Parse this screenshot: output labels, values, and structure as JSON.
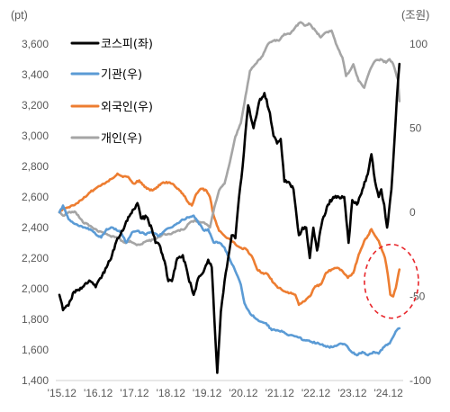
{
  "chart_data": {
    "type": "line",
    "y_left_unit": "(pt)",
    "y_right_unit": "(조원)",
    "y_left_ticks": [
      "3,600",
      "3,400",
      "3,200",
      "3,000",
      "2,800",
      "2,600",
      "2,400",
      "2,200",
      "2,000",
      "1,800",
      "1,600",
      "1,400"
    ],
    "y_left_range": [
      1400,
      3600
    ],
    "y_right_ticks": [
      "100",
      "50",
      "0",
      "-50",
      "-100"
    ],
    "y_right_range": [
      -100,
      100
    ],
    "x_ticks": [
      "'15.12",
      "'16.12",
      "'17.12",
      "'18.12",
      "'19.12",
      "'20.12",
      "'21.12",
      "'22.12",
      "'23.12",
      "'24.12"
    ],
    "x_range": [
      2015.85,
      2025.25
    ],
    "legend": {
      "placement": "top-left",
      "labels": [
        "코스피(좌)",
        "기관(우)",
        "외국인(우)",
        "개인(우)"
      ]
    },
    "grid": false,
    "annotation": {
      "type": "dashed-ellipse",
      "color": "#e8262b",
      "around": "foreign net purchases, late 2024"
    },
    "series": [
      {
        "name": "코스피(좌)",
        "axis": "left",
        "color": "#000000",
        "points": [
          [
            2015.85,
            1960
          ],
          [
            2015.95,
            1860
          ],
          [
            2016.1,
            1890
          ],
          [
            2016.25,
            1980
          ],
          [
            2016.4,
            1990
          ],
          [
            2016.55,
            2030
          ],
          [
            2016.7,
            2050
          ],
          [
            2016.85,
            2010
          ],
          [
            2017.0,
            2070
          ],
          [
            2017.15,
            2140
          ],
          [
            2017.3,
            2220
          ],
          [
            2017.45,
            2330
          ],
          [
            2017.6,
            2380
          ],
          [
            2017.75,
            2470
          ],
          [
            2017.9,
            2520
          ],
          [
            2018.0,
            2560
          ],
          [
            2018.1,
            2460
          ],
          [
            2018.25,
            2470
          ],
          [
            2018.4,
            2390
          ],
          [
            2018.5,
            2300
          ],
          [
            2018.6,
            2290
          ],
          [
            2018.75,
            2180
          ],
          [
            2018.85,
            2050
          ],
          [
            2018.95,
            2050
          ],
          [
            2019.1,
            2200
          ],
          [
            2019.25,
            2220
          ],
          [
            2019.4,
            2080
          ],
          [
            2019.55,
            1960
          ],
          [
            2019.7,
            2080
          ],
          [
            2019.85,
            2130
          ],
          [
            2019.95,
            2190
          ],
          [
            2020.05,
            2140
          ],
          [
            2020.12,
            1800
          ],
          [
            2020.2,
            1450
          ],
          [
            2020.3,
            1850
          ],
          [
            2020.4,
            2050
          ],
          [
            2020.5,
            2200
          ],
          [
            2020.6,
            2350
          ],
          [
            2020.7,
            2330
          ],
          [
            2020.8,
            2600
          ],
          [
            2020.9,
            2800
          ],
          [
            2020.97,
            3000
          ],
          [
            2021.05,
            3200
          ],
          [
            2021.2,
            3050
          ],
          [
            2021.35,
            3220
          ],
          [
            2021.5,
            3280
          ],
          [
            2021.65,
            3150
          ],
          [
            2021.75,
            3000
          ],
          [
            2021.85,
            2950
          ],
          [
            2021.95,
            2980
          ],
          [
            2022.05,
            2700
          ],
          [
            2022.15,
            2700
          ],
          [
            2022.3,
            2650
          ],
          [
            2022.45,
            2350
          ],
          [
            2022.55,
            2400
          ],
          [
            2022.65,
            2400
          ],
          [
            2022.75,
            2200
          ],
          [
            2022.85,
            2400
          ],
          [
            2022.95,
            2250
          ],
          [
            2023.1,
            2450
          ],
          [
            2023.25,
            2550
          ],
          [
            2023.4,
            2600
          ],
          [
            2023.55,
            2600
          ],
          [
            2023.7,
            2600
          ],
          [
            2023.82,
            2300
          ],
          [
            2023.92,
            2580
          ],
          [
            2024.05,
            2550
          ],
          [
            2024.2,
            2650
          ],
          [
            2024.35,
            2750
          ],
          [
            2024.45,
            2880
          ],
          [
            2024.55,
            2700
          ],
          [
            2024.65,
            2600
          ],
          [
            2024.72,
            2650
          ],
          [
            2024.8,
            2550
          ],
          [
            2024.88,
            2400
          ],
          [
            2024.93,
            2500
          ],
          [
            2025.0,
            2650
          ],
          [
            2025.08,
            2950
          ],
          [
            2025.15,
            3250
          ],
          [
            2025.22,
            3470
          ]
        ]
      },
      {
        "name": "기관(우)",
        "axis": "right",
        "color": "#5b9bd5",
        "points": [
          [
            2015.85,
            0
          ],
          [
            2015.95,
            4
          ],
          [
            2016.1,
            -4
          ],
          [
            2016.3,
            -7
          ],
          [
            2016.5,
            -9
          ],
          [
            2016.7,
            -10
          ],
          [
            2016.85,
            -13
          ],
          [
            2017.0,
            -15
          ],
          [
            2017.15,
            -10
          ],
          [
            2017.3,
            -9
          ],
          [
            2017.5,
            -11
          ],
          [
            2017.7,
            -18
          ],
          [
            2017.85,
            -12
          ],
          [
            2018.0,
            -11
          ],
          [
            2018.2,
            -13
          ],
          [
            2018.4,
            -12
          ],
          [
            2018.6,
            -14
          ],
          [
            2018.8,
            -10
          ],
          [
            2019.0,
            -8
          ],
          [
            2019.2,
            -5
          ],
          [
            2019.4,
            -3
          ],
          [
            2019.55,
            -2
          ],
          [
            2019.7,
            -7
          ],
          [
            2019.85,
            -11
          ],
          [
            2019.95,
            -10
          ],
          [
            2020.1,
            -18
          ],
          [
            2020.25,
            -18
          ],
          [
            2020.4,
            -21
          ],
          [
            2020.55,
            -28
          ],
          [
            2020.7,
            -35
          ],
          [
            2020.85,
            -43
          ],
          [
            2020.95,
            -54
          ],
          [
            2021.1,
            -60
          ],
          [
            2021.25,
            -63
          ],
          [
            2021.4,
            -65
          ],
          [
            2021.55,
            -66
          ],
          [
            2021.7,
            -70
          ],
          [
            2021.85,
            -70
          ],
          [
            2022.0,
            -71
          ],
          [
            2022.2,
            -73
          ],
          [
            2022.4,
            -74
          ],
          [
            2022.6,
            -76
          ],
          [
            2022.8,
            -77
          ],
          [
            2023.0,
            -78
          ],
          [
            2023.2,
            -80
          ],
          [
            2023.4,
            -80
          ],
          [
            2023.6,
            -78
          ],
          [
            2023.75,
            -79
          ],
          [
            2023.9,
            -83
          ],
          [
            2024.05,
            -85
          ],
          [
            2024.2,
            -83
          ],
          [
            2024.35,
            -85
          ],
          [
            2024.5,
            -83
          ],
          [
            2024.65,
            -84
          ],
          [
            2024.8,
            -80
          ],
          [
            2024.95,
            -78
          ],
          [
            2025.05,
            -74
          ],
          [
            2025.15,
            -70
          ],
          [
            2025.22,
            -69
          ]
        ]
      },
      {
        "name": "외국인(우)",
        "axis": "right",
        "color": "#ed7d31",
        "points": [
          [
            2015.85,
            0
          ],
          [
            2015.95,
            2
          ],
          [
            2016.1,
            3
          ],
          [
            2016.3,
            5
          ],
          [
            2016.5,
            8
          ],
          [
            2016.7,
            12
          ],
          [
            2016.9,
            15
          ],
          [
            2017.0,
            16
          ],
          [
            2017.15,
            18
          ],
          [
            2017.3,
            20
          ],
          [
            2017.45,
            23
          ],
          [
            2017.6,
            21
          ],
          [
            2017.75,
            21
          ],
          [
            2017.9,
            17
          ],
          [
            2018.05,
            19
          ],
          [
            2018.2,
            15
          ],
          [
            2018.35,
            13
          ],
          [
            2018.5,
            14
          ],
          [
            2018.65,
            17
          ],
          [
            2018.8,
            18
          ],
          [
            2018.95,
            17
          ],
          [
            2019.1,
            14
          ],
          [
            2019.25,
            11
          ],
          [
            2019.4,
            6
          ],
          [
            2019.5,
            4
          ],
          [
            2019.6,
            10
          ],
          [
            2019.75,
            14
          ],
          [
            2019.9,
            13
          ],
          [
            2020.0,
            9
          ],
          [
            2020.1,
            -2
          ],
          [
            2020.25,
            -11
          ],
          [
            2020.4,
            -14
          ],
          [
            2020.55,
            -16
          ],
          [
            2020.7,
            -19
          ],
          [
            2020.85,
            -21
          ],
          [
            2021.0,
            -22
          ],
          [
            2021.15,
            -26
          ],
          [
            2021.3,
            -34
          ],
          [
            2021.45,
            -36
          ],
          [
            2021.6,
            -37
          ],
          [
            2021.75,
            -42
          ],
          [
            2021.9,
            -45
          ],
          [
            2022.05,
            -47
          ],
          [
            2022.2,
            -48
          ],
          [
            2022.35,
            -49
          ],
          [
            2022.45,
            -55
          ],
          [
            2022.6,
            -53
          ],
          [
            2022.75,
            -50
          ],
          [
            2022.9,
            -44
          ],
          [
            2023.05,
            -43
          ],
          [
            2023.2,
            -36
          ],
          [
            2023.35,
            -34
          ],
          [
            2023.5,
            -33
          ],
          [
            2023.65,
            -35
          ],
          [
            2023.8,
            -39
          ],
          [
            2023.95,
            -36
          ],
          [
            2024.1,
            -25
          ],
          [
            2024.25,
            -17
          ],
          [
            2024.35,
            -14
          ],
          [
            2024.45,
            -10
          ],
          [
            2024.55,
            -14
          ],
          [
            2024.65,
            -17
          ],
          [
            2024.75,
            -23
          ],
          [
            2024.82,
            -27
          ],
          [
            2024.9,
            -37
          ],
          [
            2024.97,
            -49
          ],
          [
            2025.05,
            -50
          ],
          [
            2025.12,
            -45
          ],
          [
            2025.18,
            -38
          ],
          [
            2025.22,
            -34
          ]
        ]
      },
      {
        "name": "개인(우)",
        "axis": "right",
        "color": "#a5a5a5",
        "points": [
          [
            2015.85,
            0
          ],
          [
            2015.95,
            -2
          ],
          [
            2016.1,
            0
          ],
          [
            2016.3,
            0
          ],
          [
            2016.5,
            -6
          ],
          [
            2016.7,
            -8
          ],
          [
            2016.9,
            -11
          ],
          [
            2017.05,
            -12
          ],
          [
            2017.25,
            -14
          ],
          [
            2017.45,
            -15
          ],
          [
            2017.65,
            -18
          ],
          [
            2017.8,
            -17
          ],
          [
            2017.95,
            -19
          ],
          [
            2018.1,
            -19
          ],
          [
            2018.3,
            -17
          ],
          [
            2018.5,
            -16
          ],
          [
            2018.7,
            -13
          ],
          [
            2018.9,
            -13
          ],
          [
            2019.1,
            -11
          ],
          [
            2019.3,
            -10
          ],
          [
            2019.45,
            -6
          ],
          [
            2019.6,
            -5
          ],
          [
            2019.75,
            -6
          ],
          [
            2019.9,
            -7
          ],
          [
            2020.0,
            -9
          ],
          [
            2020.12,
            3
          ],
          [
            2020.25,
            13
          ],
          [
            2020.4,
            17
          ],
          [
            2020.55,
            30
          ],
          [
            2020.7,
            45
          ],
          [
            2020.85,
            53
          ],
          [
            2020.95,
            65
          ],
          [
            2021.1,
            84
          ],
          [
            2021.25,
            88
          ],
          [
            2021.45,
            93
          ],
          [
            2021.6,
            100
          ],
          [
            2021.75,
            102
          ],
          [
            2021.9,
            102
          ],
          [
            2022.05,
            106
          ],
          [
            2022.2,
            106
          ],
          [
            2022.35,
            110
          ],
          [
            2022.5,
            113
          ],
          [
            2022.6,
            111
          ],
          [
            2022.75,
            112
          ],
          [
            2022.9,
            108
          ],
          [
            2023.05,
            104
          ],
          [
            2023.2,
            107
          ],
          [
            2023.35,
            108
          ],
          [
            2023.5,
            99
          ],
          [
            2023.65,
            92
          ],
          [
            2023.75,
            81
          ],
          [
            2023.85,
            84
          ],
          [
            2023.95,
            88
          ],
          [
            2024.1,
            78
          ],
          [
            2024.25,
            74
          ],
          [
            2024.4,
            84
          ],
          [
            2024.55,
            90
          ],
          [
            2024.7,
            91
          ],
          [
            2024.85,
            89
          ],
          [
            2024.95,
            91
          ],
          [
            2025.05,
            88
          ],
          [
            2025.12,
            83
          ],
          [
            2025.18,
            79
          ],
          [
            2025.22,
            66
          ]
        ]
      }
    ]
  }
}
